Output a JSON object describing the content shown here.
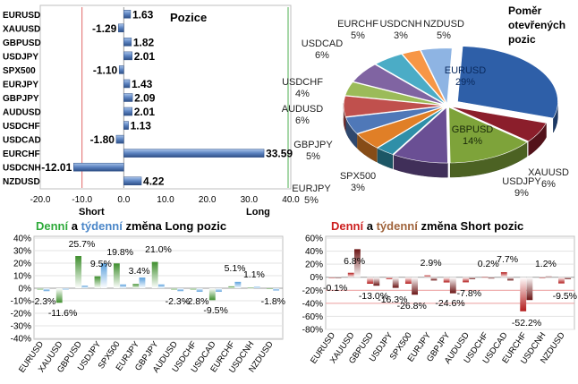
{
  "colors": {
    "bar_blue": "#7fa3d6",
    "bar_blue_dark": "#3b5f9a",
    "short_line": "#e06666",
    "long_line": "#4caf50",
    "green_text": "#2eaa3a",
    "red_text": "#cc1f1f",
    "brown_text": "#a0643c",
    "daily_long": "#5fae4a",
    "weekly_long": "#6fa8dc",
    "daily_short": "#b22222",
    "weekly_short": "#8b1a1a"
  },
  "chart_data": [
    {
      "type": "bar",
      "orientation": "horizontal",
      "title": "Pozice",
      "categories": [
        "EURUSD",
        "XAUUSD",
        "GBPUSD",
        "USDJPY",
        "SPX500",
        "EURJPY",
        "GBPJPY",
        "AUDUSD",
        "USDCHF",
        "USDCAD",
        "EURCHF",
        "USDCNH",
        "NZDUSD"
      ],
      "values": [
        1.63,
        -1.29,
        1.82,
        2.01,
        -1.1,
        1.43,
        2.09,
        2.01,
        1.13,
        -1.8,
        33.59,
        -12.01,
        4.22
      ],
      "value_labels": [
        "1.63",
        "-1.29",
        "1.82",
        "2.01",
        "-1.10",
        "1.43",
        "2.09",
        "2.01",
        "1.13",
        "-1.80",
        "33.59",
        "-12.01",
        "4.22"
      ],
      "xlim": [
        -20,
        40
      ],
      "xticks": [
        "-20.0",
        "-10.0",
        "0.0",
        "10.0",
        "20.0",
        "30.0",
        "40.0"
      ],
      "reference_lines": [
        {
          "label": "Short",
          "value": -10
        },
        {
          "label": "Long",
          "value": 33
        }
      ]
    },
    {
      "type": "pie",
      "title_lines": [
        "Poměr",
        "otevřených",
        "pozic"
      ],
      "slices": [
        {
          "label": "EURUSD",
          "value": 29,
          "text": "29%",
          "color": "#2e5fa8"
        },
        {
          "label": "XAUUSD",
          "value": 6,
          "text": "6%",
          "color": "#8b1e2b"
        },
        {
          "label": "GBPUSD",
          "value": 14,
          "text": "14%",
          "color": "#7ea33a"
        },
        {
          "label": "USDJPY",
          "value": 9,
          "text": "9%",
          "color": "#6a4f94"
        },
        {
          "label": "SPX500",
          "value": 3,
          "text": "3%",
          "color": "#2f8fa8"
        },
        {
          "label": "EURJPY",
          "value": 5,
          "text": "5%",
          "color": "#e07f27"
        },
        {
          "label": "GBPJPY",
          "value": 5,
          "text": "5%",
          "color": "#4f78b8"
        },
        {
          "label": "AUDUSD",
          "value": 6,
          "text": "6%",
          "color": "#c0504d"
        },
        {
          "label": "USDCHF",
          "value": 4,
          "text": "4%",
          "color": "#9bbb59"
        },
        {
          "label": "USDCAD",
          "value": 6,
          "text": "6%",
          "color": "#8064a2"
        },
        {
          "label": "EURCHF",
          "value": 5,
          "text": "5%",
          "color": "#4bacc6"
        },
        {
          "label": "USDCNH",
          "value": 3,
          "text": "3%",
          "color": "#f79646"
        },
        {
          "label": "NZDUSD",
          "value": 5,
          "text": "5%",
          "color": "#8eb4e3"
        }
      ]
    },
    {
      "type": "bar",
      "title_parts": [
        "Denní",
        " a ",
        "týdenní",
        " změna Long pozic"
      ],
      "categories": [
        "EURUSD",
        "XAUUSD",
        "GBPUSD",
        "USDJPY",
        "SPX500",
        "EURJPY",
        "GBPJPY",
        "AUDUSD",
        "USDCHF",
        "USDCAD",
        "EURCHF",
        "USDCNH",
        "NZDUSD"
      ],
      "series": [
        {
          "values": [
            -1.0,
            -11.6,
            25.7,
            9.5,
            19.8,
            3.4,
            21.0,
            -1.0,
            -1.0,
            -9.5,
            1.5,
            0.5,
            -0.6
          ]
        },
        {
          "values": [
            -2.3,
            -1.0,
            2.0,
            19.8,
            3.0,
            8.5,
            3.0,
            -2.3,
            -2.8,
            -2.8,
            5.1,
            1.1,
            -1.8
          ]
        }
      ],
      "data_labels": [
        {
          "text": "-2.3%",
          "i": 0,
          "v": -2.3
        },
        {
          "text": "-11.6%",
          "i": 1,
          "v": -11.6
        },
        {
          "text": "25.7%",
          "i": 2,
          "v": 25.7
        },
        {
          "text": "9.5%",
          "i": 3,
          "v": 9.5
        },
        {
          "text": "19.8%",
          "i": 4,
          "v": 19.8
        },
        {
          "text": "3.4%",
          "i": 5,
          "v": 3.4
        },
        {
          "text": "21.0%",
          "i": 6,
          "v": 21.0
        },
        {
          "text": "-2.3%",
          "i": 7,
          "v": -2.3
        },
        {
          "text": "-2.8%",
          "i": 8,
          "v": -2.8
        },
        {
          "text": "-9.5%",
          "i": 9,
          "v": -9.5
        },
        {
          "text": "5.1%",
          "i": 10,
          "v": 5.1
        },
        {
          "text": "1.1%",
          "i": 11,
          "v": 1.1
        },
        {
          "text": "-1.8%",
          "i": 12,
          "v": -1.8
        }
      ],
      "ylim": [
        -40,
        40
      ],
      "yticks": [
        "40%",
        "30%",
        "20%",
        "10%",
        "0%",
        "-10%",
        "-20%",
        "-30%",
        "-40%"
      ]
    },
    {
      "type": "bar",
      "title_parts": [
        "Denní",
        " a ",
        "týdenní",
        " změna Short pozic"
      ],
      "categories": [
        "EURUSD",
        "XAUUSD",
        "GBPUSD",
        "USDJPY",
        "SPX500",
        "EURJPY",
        "GBPJPY",
        "AUDUSD",
        "USDCHF",
        "USDCAD",
        "EURCHF",
        "USDCNH",
        "NZDUSD"
      ],
      "series": [
        {
          "values": [
            -1.0,
            6.8,
            -10.0,
            -3.0,
            -10.0,
            2.9,
            -8.0,
            -7.8,
            0.2,
            7.7,
            -52.2,
            -1.0,
            -9.5
          ]
        },
        {
          "values": [
            -0.1,
            43.0,
            -13.0,
            -16.3,
            -26.8,
            -5.0,
            -24.6,
            -3.0,
            -2.0,
            -5.0,
            -35.0,
            1.2,
            -3.0
          ]
        }
      ],
      "data_labels": [
        {
          "text": "-0.1%",
          "i": 0,
          "v": -0.1
        },
        {
          "text": "6.8%",
          "i": 1,
          "v": 6.8
        },
        {
          "text": "-13.0%",
          "i": 2,
          "v": -13.0
        },
        {
          "text": "-16.3%",
          "i": 3,
          "v": -16.3
        },
        {
          "text": "-26.8%",
          "i": 4,
          "v": -26.8
        },
        {
          "text": "2.9%",
          "i": 5,
          "v": 2.9
        },
        {
          "text": "-24.6%",
          "i": 6,
          "v": -24.6
        },
        {
          "text": "-7.8%",
          "i": 7,
          "v": -7.8
        },
        {
          "text": "0.2%",
          "i": 8,
          "v": 0.2
        },
        {
          "text": "7.7%",
          "i": 9,
          "v": 7.7
        },
        {
          "text": "-52.2%",
          "i": 10,
          "v": -52.2
        },
        {
          "text": "1.2%",
          "i": 11,
          "v": 1.2
        },
        {
          "text": "-9.5%",
          "i": 12,
          "v": -9.5
        }
      ],
      "ylim": [
        -80,
        60
      ],
      "yticks": [
        "60%",
        "40%",
        "20%",
        "0%",
        "-20%",
        "-40%",
        "-60%",
        "-80%"
      ]
    }
  ]
}
